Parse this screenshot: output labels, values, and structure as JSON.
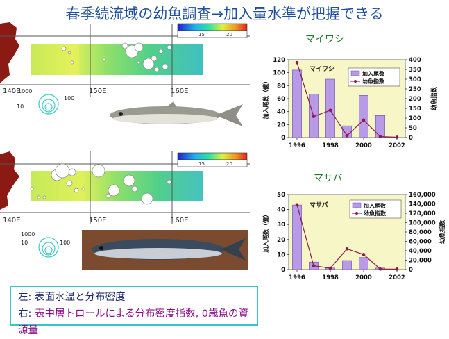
{
  "title": "春季続流域の幼魚調査→加入量水準が把握できる",
  "maps": {
    "colorbar_ticks": [
      "15",
      "20"
    ],
    "lon_labels": [
      "140E",
      "150E",
      "160E"
    ],
    "legend_values": [
      "1000",
      "100",
      "10"
    ],
    "water": "#a9d7ea",
    "land": "#8c1a14"
  },
  "note": {
    "line1": "左: 表面水温と分布密度",
    "line2_prefix": "右: ",
    "line2_body": "表中層トロールによる分布密度指数, 0歳魚の資源量"
  },
  "chart_data": [
    {
      "type": "bar",
      "title": "マイワシ",
      "inner_label": "マイワシ",
      "ylabel": "加入尾数（億）",
      "y2label": "幼魚指数",
      "ylim": [
        0,
        120
      ],
      "y2lim": [
        0,
        400
      ],
      "yticks": [
        "0",
        "20",
        "40",
        "60",
        "80",
        "100",
        "120"
      ],
      "y2ticks": [
        "0",
        "50",
        "100",
        "150",
        "200",
        "250",
        "300",
        "350",
        "400"
      ],
      "xticks": [
        "1996",
        "1998",
        "2000",
        "2002"
      ],
      "categories": [
        1996,
        1997,
        1998,
        1999,
        2000,
        2001,
        2002
      ],
      "series": [
        {
          "name": "加入尾数",
          "kind": "bar",
          "values": [
            104,
            67,
            90,
            18,
            65,
            34,
            0
          ]
        },
        {
          "name": "幼魚指数",
          "kind": "line",
          "values": [
            385,
            108,
            140,
            10,
            90,
            5,
            2
          ]
        }
      ],
      "colors": {
        "bar": "#b99ae6",
        "line": "#8b1a4b",
        "plot_bg": "#f6f6c6"
      }
    },
    {
      "type": "bar",
      "title": "マサバ",
      "inner_label": "マサバ",
      "ylabel": "加入尾数（億）",
      "y2label": "幼魚指数",
      "ylim": [
        0,
        50
      ],
      "y2lim": [
        0,
        160000
      ],
      "yticks": [
        "0",
        "10",
        "20",
        "30",
        "40",
        "50"
      ],
      "y2ticks": [
        "0",
        "20,000",
        "40,000",
        "60,000",
        "80,000",
        "100,000",
        "120,000",
        "140,000",
        "160,000"
      ],
      "xticks": [
        "1996",
        "1998",
        "2000",
        "2002"
      ],
      "categories": [
        1996,
        1997,
        1998,
        1999,
        2000,
        2001,
        2002
      ],
      "series": [
        {
          "name": "加入尾数",
          "kind": "bar",
          "values": [
            43,
            5,
            1,
            6,
            8,
            1,
            0
          ]
        },
        {
          "name": "幼魚指数",
          "kind": "line",
          "values": [
            138000,
            8000,
            3000,
            44000,
            32000,
            1000,
            1000
          ]
        }
      ],
      "colors": {
        "bar": "#b99ae6",
        "line": "#8b1a4b",
        "plot_bg": "#f6f6c6"
      }
    }
  ]
}
